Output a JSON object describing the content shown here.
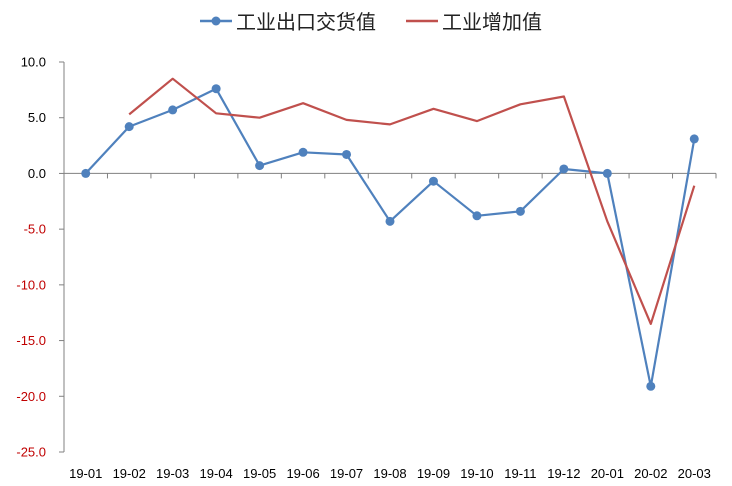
{
  "chart_data": {
    "type": "line",
    "title": "",
    "xlabel": "",
    "ylabel": "",
    "categories": [
      "19-01",
      "19-02",
      "19-03",
      "19-04",
      "19-05",
      "19-06",
      "19-07",
      "19-08",
      "19-09",
      "19-10",
      "19-11",
      "19-12",
      "20-01",
      "20-02",
      "20-03"
    ],
    "ylim": [
      -25,
      10
    ],
    "yticks": [
      10.0,
      5.0,
      0.0,
      -5.0,
      -10.0,
      -15.0,
      -20.0,
      -25.0
    ],
    "ytick_labels": [
      "10.0",
      "5.0",
      "0.0",
      "-5.0",
      "-10.0",
      "-15.0",
      "-20.0",
      "-25.0"
    ],
    "grid": false,
    "legend_position": "top",
    "series": [
      {
        "name": "工业出口交货值",
        "color": "#4F81BD",
        "markers": true,
        "values": [
          0.0,
          4.2,
          5.7,
          7.6,
          0.7,
          1.9,
          1.7,
          -4.3,
          -0.7,
          -3.8,
          -3.4,
          0.4,
          0.0,
          -19.1,
          3.1
        ]
      },
      {
        "name": "工业增加值",
        "color": "#C0504D",
        "markers": false,
        "values": [
          null,
          5.3,
          8.5,
          5.4,
          5.0,
          6.3,
          4.8,
          4.4,
          5.8,
          4.7,
          6.2,
          6.9,
          -4.3,
          -13.5,
          -1.1
        ]
      }
    ],
    "colors": {
      "axis": "#808080",
      "positive_tick_label": "#000000",
      "negative_tick_label": "#C00000",
      "category_label": "#000000"
    }
  }
}
